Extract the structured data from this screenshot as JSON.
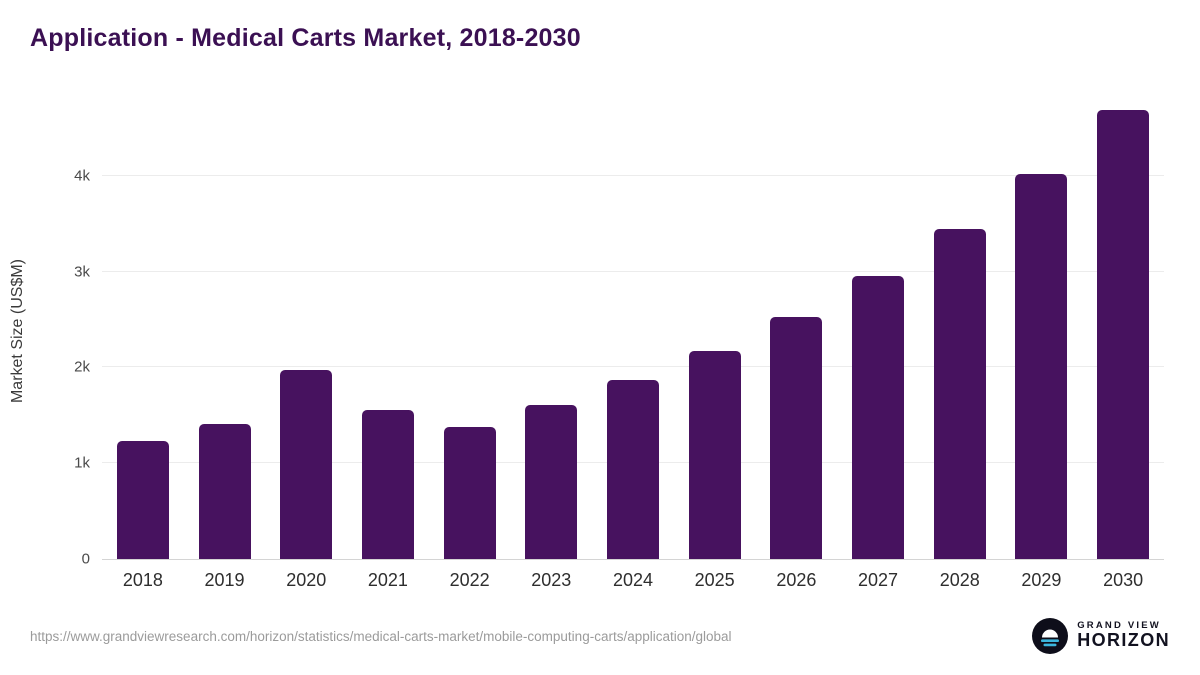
{
  "header": {
    "title": "Application - Medical Carts Market, 2018-2030"
  },
  "chart_data": {
    "type": "bar",
    "title": "Application - Medical Carts Market, 2018-2030",
    "categories": [
      "2018",
      "2019",
      "2020",
      "2021",
      "2022",
      "2023",
      "2024",
      "2025",
      "2026",
      "2027",
      "2028",
      "2029",
      "2030"
    ],
    "values": [
      1230,
      1410,
      1970,
      1560,
      1380,
      1610,
      1870,
      2170,
      2530,
      2950,
      3440,
      4020,
      4690
    ],
    "xlabel": "",
    "ylabel": "Market Size (US$M)",
    "ytick_labels": [
      "0",
      "1k",
      "2k",
      "3k",
      "4k"
    ],
    "ytick_values": [
      0,
      1000,
      2000,
      3000,
      4000
    ],
    "ylim": [
      0,
      4790
    ],
    "grid": true,
    "legend": "none",
    "bar_color": "#47125f"
  },
  "footer": {
    "source_url": "https://www.grandviewresearch.com/horizon/statistics/medical-carts-market/mobile-computing-carts/application/global",
    "brand_line1": "GRAND VIEW",
    "brand_line2": "HORIZON",
    "brand_icon": "horizon-sunrise-icon",
    "brand_icon_accent": "#3cb6dd"
  }
}
